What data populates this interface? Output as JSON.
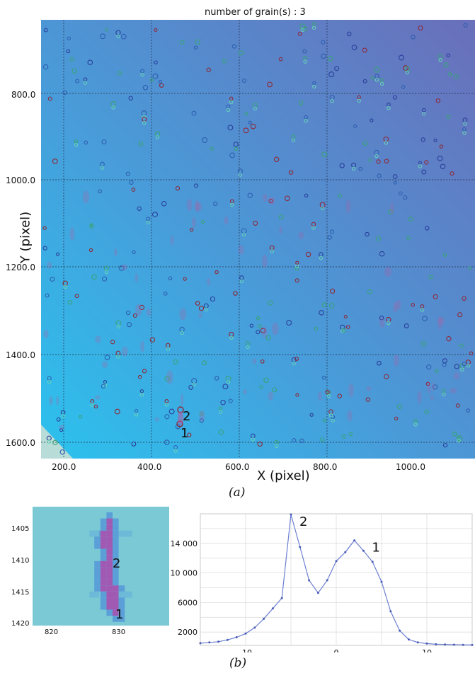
{
  "panel_a": {
    "title": "number of grain(s) : 3",
    "xlabel": "X (pixel)",
    "ylabel": "Y (pixel)",
    "xticks": [
      "200.0",
      "400.0",
      "600.0",
      "800.0",
      "1000.0"
    ],
    "yticks": [
      "800.0",
      "1000.0",
      "1200.0",
      "1400.0",
      "1600.0"
    ],
    "labels": [
      "2",
      "1"
    ],
    "caption": "(a)"
  },
  "panel_b_left": {
    "xticks": [
      "820",
      "830"
    ],
    "yticks": [
      "1405",
      "1410",
      "1415",
      "1420"
    ],
    "labels": [
      "2",
      "1"
    ]
  },
  "chart_data": [
    {
      "type": "line",
      "xlim": [
        -15,
        15
      ],
      "ylim": [
        200,
        18000
      ],
      "xticks": [
        "-10",
        "0",
        "10"
      ],
      "yticks": [
        "2000",
        "6000",
        "10 000",
        "14 000"
      ],
      "grid": true,
      "x": [
        -15,
        -14,
        -13,
        -12,
        -11,
        -10,
        -9,
        -8,
        -7,
        -6,
        -5,
        -4,
        -3,
        -2,
        -1,
        0,
        1,
        2,
        3,
        4,
        5,
        6,
        7,
        8,
        9,
        10,
        11,
        12,
        13,
        14,
        15
      ],
      "y": [
        500,
        600,
        700,
        950,
        1300,
        1800,
        2600,
        3800,
        5200,
        6600,
        17900,
        13500,
        9000,
        7300,
        9000,
        11600,
        12800,
        14400,
        13000,
        11500,
        8800,
        4800,
        2200,
        1000,
        600,
        450,
        350,
        320,
        300,
        280,
        260
      ],
      "annotations": [
        {
          "text": "2",
          "x": -5,
          "y": 17900
        },
        {
          "text": "1",
          "x": 3,
          "y": 14400
        }
      ],
      "caption": "(b)"
    }
  ]
}
